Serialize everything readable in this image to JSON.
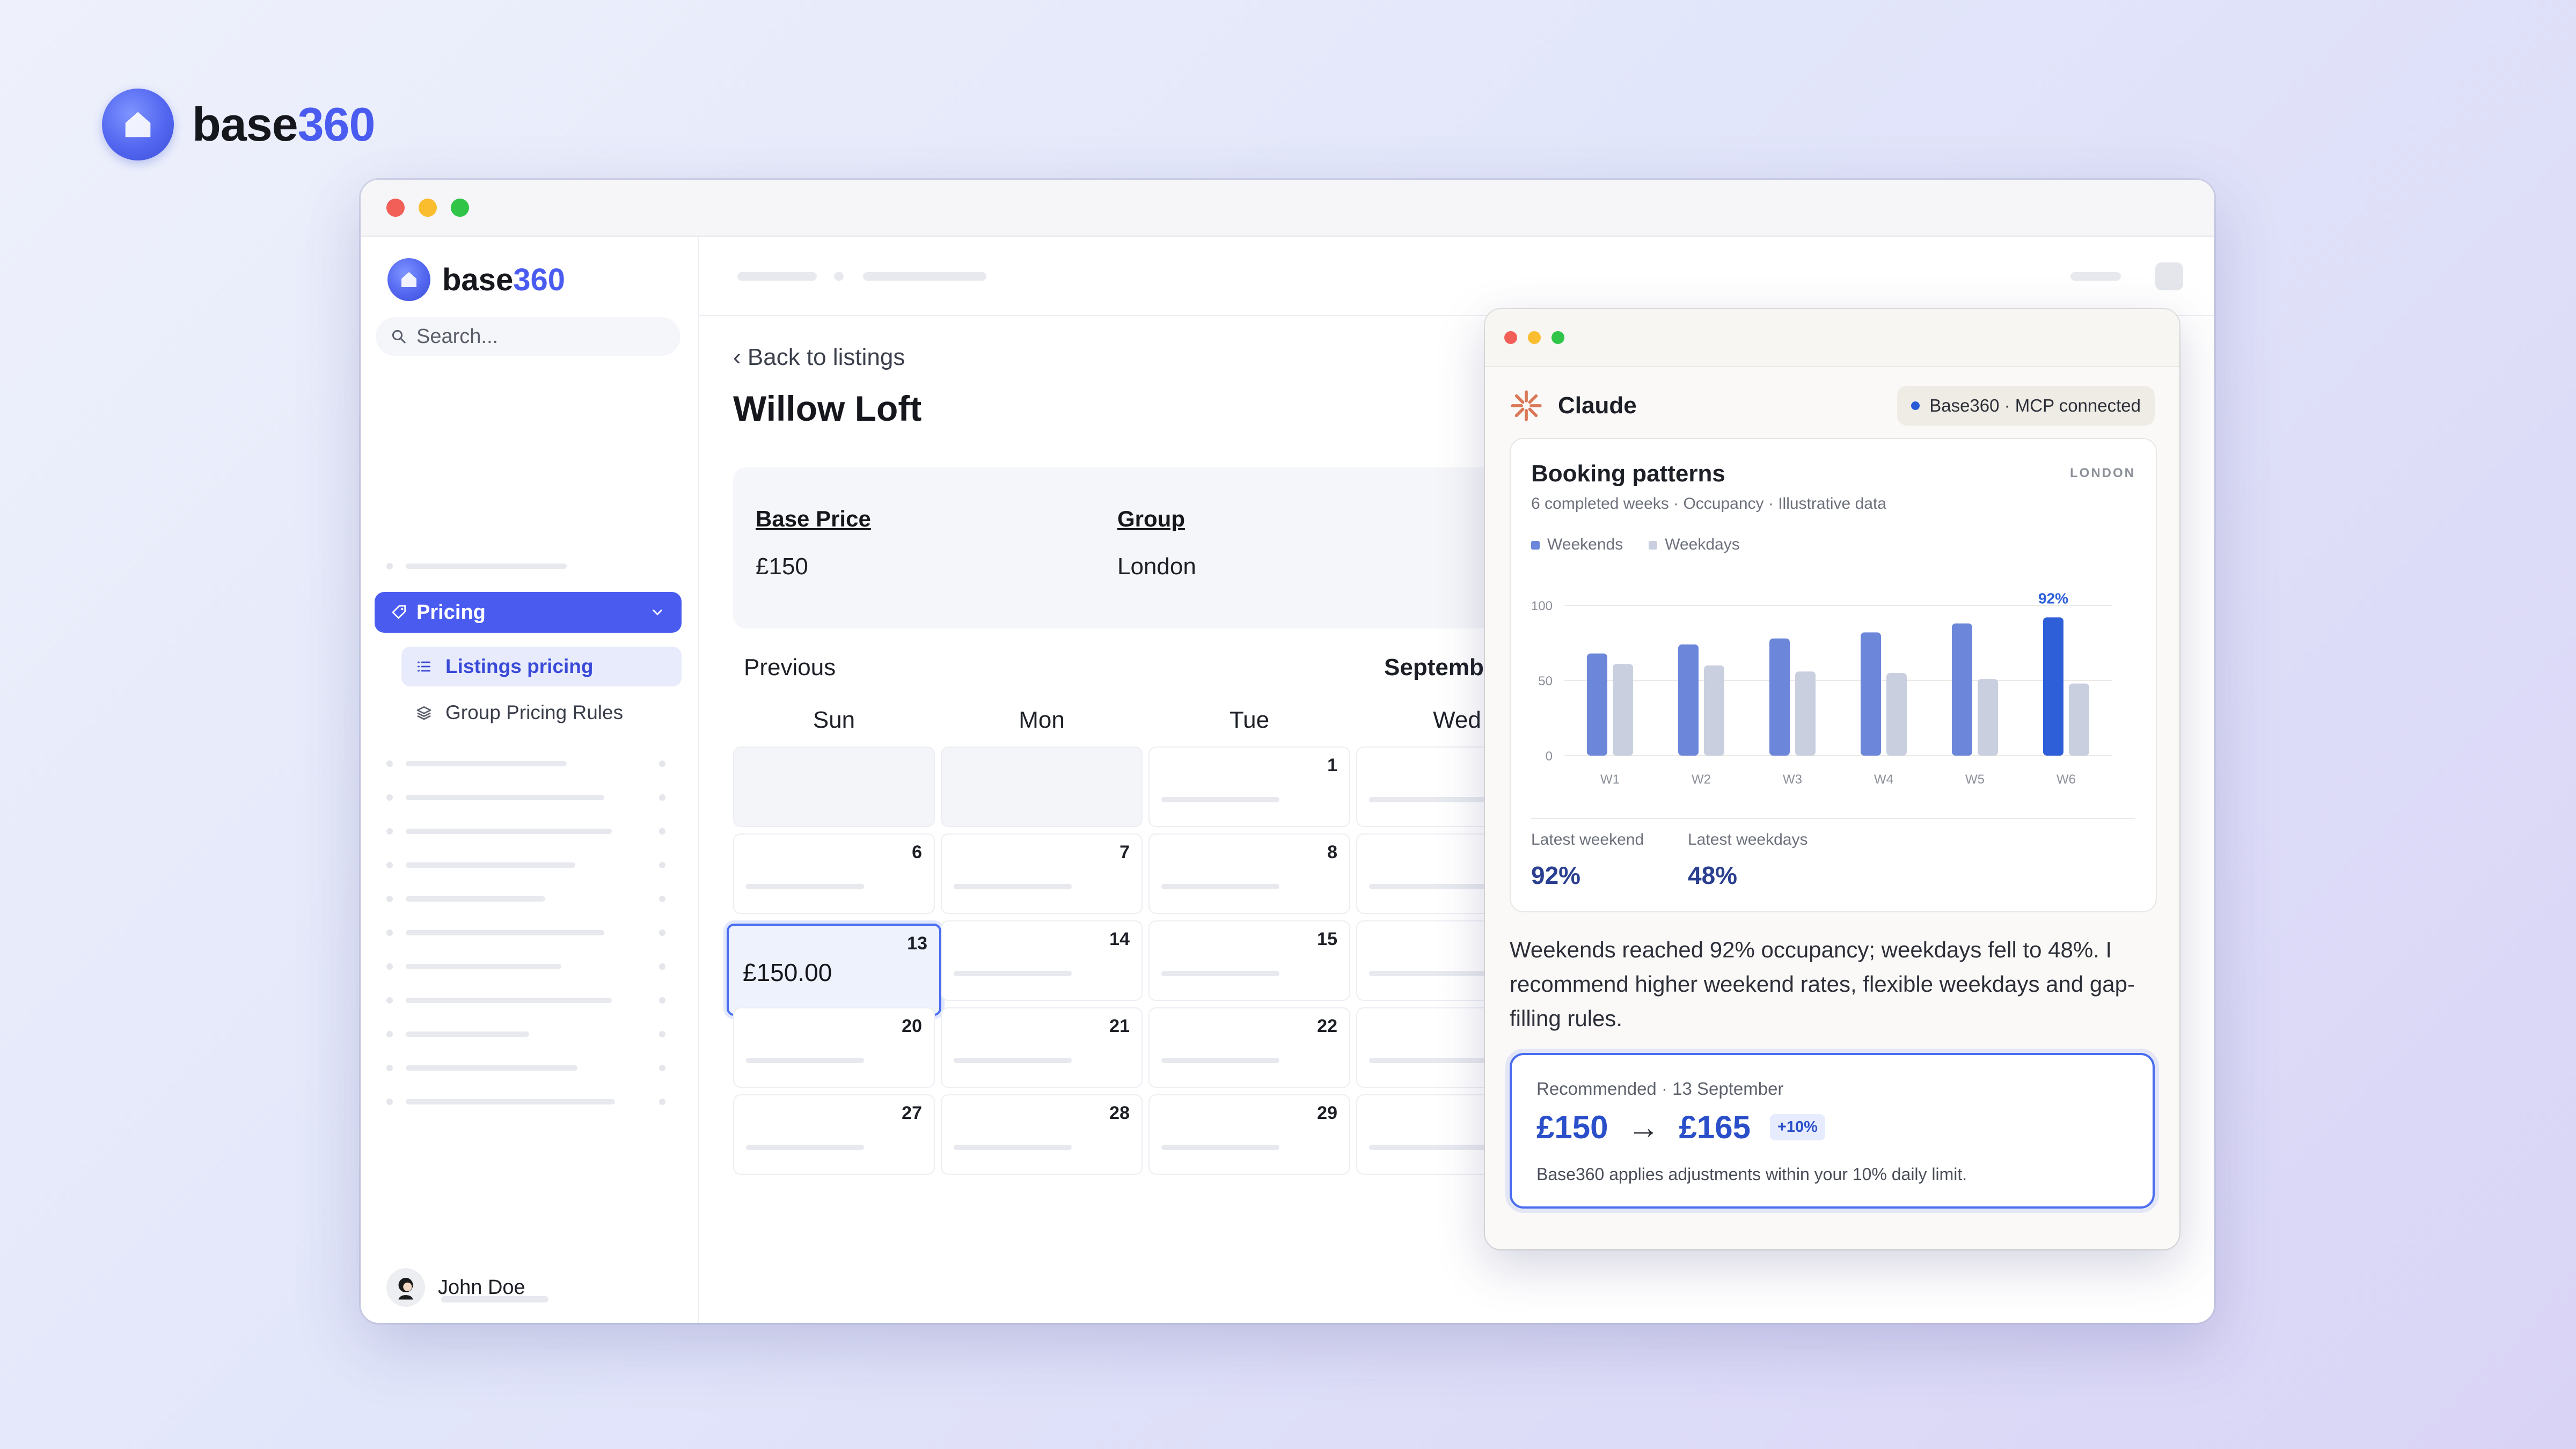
{
  "brand": {
    "name_dark": "base",
    "name_accent": "360",
    "accent_color": "#4a5cf0"
  },
  "sidebar": {
    "search_placeholder": "Search...",
    "pricing_label": "Pricing",
    "sub_items": [
      {
        "label": "Listings pricing",
        "active": true
      },
      {
        "label": "Group Pricing Rules",
        "active": false
      }
    ],
    "user_name": "John Doe"
  },
  "listing": {
    "back_label": "Back to listings",
    "title": "Willow Loft",
    "base_price_label": "Base Price",
    "base_price_value": "£150",
    "group_label": "Group",
    "group_value": "London"
  },
  "calendar": {
    "previous_label": "Previous",
    "month_label": "Septemb",
    "day_headers": [
      "Sun",
      "Mon",
      "Tue",
      "Wed"
    ],
    "weeks": [
      [
        "",
        "",
        "1",
        ""
      ],
      [
        "6",
        "7",
        "8",
        ""
      ],
      [
        "13",
        "14",
        "15",
        ""
      ],
      [
        "20",
        "21",
        "22",
        ""
      ],
      [
        "27",
        "28",
        "29",
        ""
      ]
    ],
    "selected_day": "13",
    "selected_price": "£150.00"
  },
  "claude": {
    "name": "Claude",
    "mcp_status": "Base360 · MCP connected",
    "chart_title": "Booking patterns",
    "chart_subtitle": "6 completed weeks · Occupancy · Illustrative data",
    "chart_region": "LONDON",
    "latest_weekend_label": "Latest weekend",
    "latest_weekend_value": "92%",
    "latest_weekdays_label": "Latest weekdays",
    "latest_weekdays_value": "48%",
    "message": "Weekends reached 92% occupancy; weekdays fell to 48%. I recommend higher weekend rates, flexible weekdays and gap-filling rules.",
    "recommendation": {
      "label": "Recommended · 13 September",
      "from_price": "£150",
      "arrow": "→",
      "to_price": "£165",
      "change": "+10%",
      "note": "Base360 applies adjustments within your 10% daily limit."
    }
  },
  "chart_data": {
    "type": "bar",
    "title": "Booking patterns",
    "subtitle": "6 completed weeks · Occupancy · Illustrative data",
    "categories": [
      "W1",
      "W2",
      "W3",
      "W4",
      "W5",
      "W6"
    ],
    "series": [
      {
        "name": "Weekends",
        "values": [
          68,
          74,
          78,
          82,
          88,
          92
        ],
        "color": "#6c86da"
      },
      {
        "name": "Weekdays",
        "values": [
          61,
          60,
          56,
          55,
          51,
          48
        ],
        "color": "#c9cfdf"
      }
    ],
    "highlight": {
      "category": "W6",
      "series": "Weekends",
      "label": "92%",
      "color": "#2e5fd9"
    },
    "yticks": [
      0,
      50,
      100
    ],
    "ylim": [
      0,
      100
    ],
    "grid": true,
    "legend": "top-left"
  }
}
